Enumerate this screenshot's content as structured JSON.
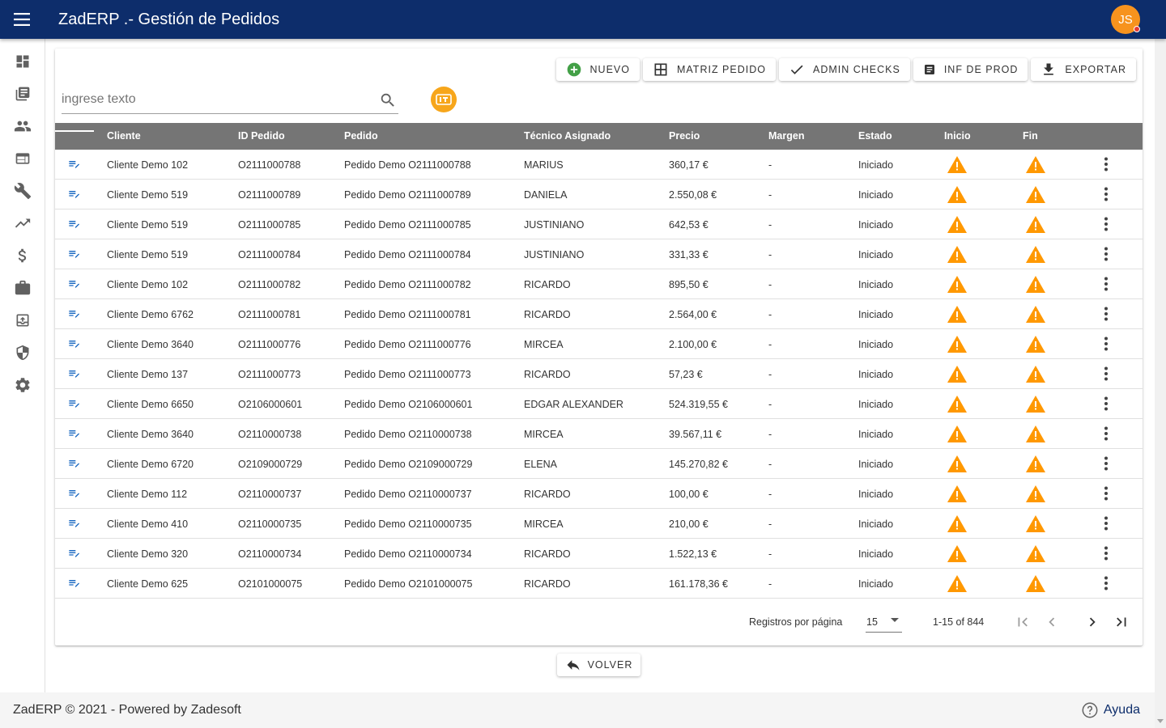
{
  "app": {
    "title": "ZadERP .- Gestión de Pedidos",
    "user_initials": "JS"
  },
  "sidebar": {
    "items": [
      {
        "icon": "dashboard-icon"
      },
      {
        "icon": "library-icon"
      },
      {
        "icon": "people-icon"
      },
      {
        "icon": "web-window-icon"
      },
      {
        "icon": "wrench-icon"
      },
      {
        "icon": "trending-up-icon"
      },
      {
        "icon": "dollar-icon"
      },
      {
        "icon": "briefcase-icon"
      },
      {
        "icon": "archive-upload-icon"
      },
      {
        "icon": "shield-icon"
      },
      {
        "icon": "gear-icon"
      }
    ]
  },
  "toolbar": {
    "nuevo": "NUEVO",
    "matriz": "MATRIZ PEDIDO",
    "admin_checks": "ADMIN CHECKS",
    "inf_prod": "INF DE PROD",
    "exportar": "EXPORTAR"
  },
  "search": {
    "placeholder": "ingrese texto"
  },
  "table": {
    "headers": [
      "Cliente",
      "ID Pedido",
      "Pedido",
      "Técnico Asignado",
      "Precio",
      "Margen",
      "Estado",
      "Inicio",
      "Fin"
    ],
    "rows": [
      {
        "cliente": "Cliente Demo 102",
        "id": "O2111000788",
        "pedido": "Pedido Demo O2111000788",
        "tecnico": "MARIUS",
        "precio": "360,17 €",
        "margen": "-",
        "estado": "Iniciado"
      },
      {
        "cliente": "Cliente Demo 519",
        "id": "O2111000789",
        "pedido": "Pedido Demo O2111000789",
        "tecnico": "DANIELA",
        "precio": "2.550,08 €",
        "margen": "-",
        "estado": "Iniciado"
      },
      {
        "cliente": "Cliente Demo 519",
        "id": "O2111000785",
        "pedido": "Pedido Demo O2111000785",
        "tecnico": "JUSTINIANO",
        "precio": "642,53 €",
        "margen": "-",
        "estado": "Iniciado"
      },
      {
        "cliente": "Cliente Demo 519",
        "id": "O2111000784",
        "pedido": "Pedido Demo O2111000784",
        "tecnico": "JUSTINIANO",
        "precio": "331,33 €",
        "margen": "-",
        "estado": "Iniciado"
      },
      {
        "cliente": "Cliente Demo 102",
        "id": "O2111000782",
        "pedido": "Pedido Demo O2111000782",
        "tecnico": "RICARDO",
        "precio": "895,50 €",
        "margen": "-",
        "estado": "Iniciado"
      },
      {
        "cliente": "Cliente Demo 6762",
        "id": "O2111000781",
        "pedido": "Pedido Demo O2111000781",
        "tecnico": "RICARDO",
        "precio": "2.564,00 €",
        "margen": "-",
        "estado": "Iniciado"
      },
      {
        "cliente": "Cliente Demo 3640",
        "id": "O2111000776",
        "pedido": "Pedido Demo O2111000776",
        "tecnico": "MIRCEA",
        "precio": "2.100,00 €",
        "margen": "-",
        "estado": "Iniciado"
      },
      {
        "cliente": "Cliente Demo 137",
        "id": "O2111000773",
        "pedido": "Pedido Demo O2111000773",
        "tecnico": "RICARDO",
        "precio": "57,23 €",
        "margen": "-",
        "estado": "Iniciado"
      },
      {
        "cliente": "Cliente Demo 6650",
        "id": "O2106000601",
        "pedido": "Pedido Demo O2106000601",
        "tecnico": "EDGAR ALEXANDER",
        "precio": "524.319,55 €",
        "margen": "-",
        "estado": "Iniciado"
      },
      {
        "cliente": "Cliente Demo 3640",
        "id": "O2110000738",
        "pedido": "Pedido Demo O2110000738",
        "tecnico": "MIRCEA",
        "precio": "39.567,11 €",
        "margen": "-",
        "estado": "Iniciado"
      },
      {
        "cliente": "Cliente Demo 6720",
        "id": "O2109000729",
        "pedido": "Pedido Demo O2109000729",
        "tecnico": "ELENA",
        "precio": "145.270,82 €",
        "margen": "-",
        "estado": "Iniciado"
      },
      {
        "cliente": "Cliente Demo 112",
        "id": "O2110000737",
        "pedido": "Pedido Demo O2110000737",
        "tecnico": "RICARDO",
        "precio": "100,00 €",
        "margen": "-",
        "estado": "Iniciado"
      },
      {
        "cliente": "Cliente Demo 410",
        "id": "O2110000735",
        "pedido": "Pedido Demo O2110000735",
        "tecnico": "MIRCEA",
        "precio": "210,00 €",
        "margen": "-",
        "estado": "Iniciado"
      },
      {
        "cliente": "Cliente Demo 320",
        "id": "O2110000734",
        "pedido": "Pedido Demo O2110000734",
        "tecnico": "RICARDO",
        "precio": "1.522,13 €",
        "margen": "-",
        "estado": "Iniciado"
      },
      {
        "cliente": "Cliente Demo 625",
        "id": "O2101000075",
        "pedido": "Pedido Demo O2101000075",
        "tecnico": "RICARDO",
        "precio": "161.178,36 €",
        "margen": "-",
        "estado": "Iniciado"
      }
    ]
  },
  "paginator": {
    "label": "Registros por página",
    "page_size": "15",
    "range": "1-15 of 844"
  },
  "back_label": "VOLVER",
  "footer": {
    "copyright": "ZadERP © 2021 - Powered by Zadesoft",
    "help": "Ayuda"
  },
  "colors": {
    "header_bg": "#0d2d6b",
    "accent": "#f7931e",
    "warning": "#ff9800",
    "table_header": "#757575",
    "edit_icon": "#1565c0"
  }
}
